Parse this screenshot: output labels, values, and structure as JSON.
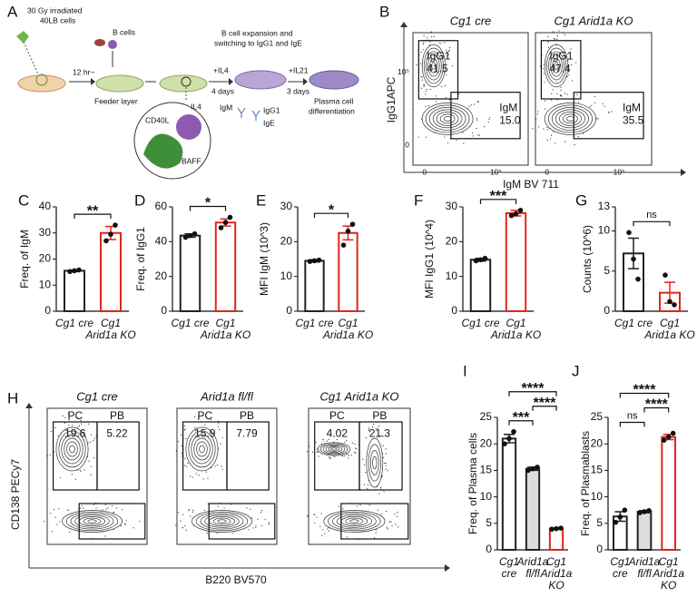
{
  "schematic": {
    "panel": "A",
    "irradiated": "30 Gy irradiated",
    "cells": "40LB cells",
    "bcells": "B cells",
    "time": "12 hr~",
    "feeder": "Feeder layer",
    "expansion1": "B cell expansion and",
    "expansion2": "switching to IgG1 and IgE",
    "il4": "+IL4",
    "days4": "4 days",
    "il21": "+IL21",
    "days3": "3 days",
    "pc1": "Plasma cell",
    "pc2": "differentiation",
    "cd40l": "CD40L",
    "il4b": "IL4",
    "baff": "BAFF",
    "igm": "IgM",
    "igg1": "IgG1",
    "ige": "IgE"
  },
  "flow_b": {
    "panel": "B",
    "x_label": "IgM BV 711",
    "y_label": "IgG1APC",
    "x_ticks": [
      "0",
      "10⁵"
    ],
    "y_ticks": [
      "0",
      "10⁵"
    ],
    "plots": [
      {
        "title": "Cg1 cre",
        "gates": [
          {
            "name": "IgG1",
            "value": "41.5"
          },
          {
            "name": "IgM",
            "value": "15.0"
          }
        ]
      },
      {
        "title": "Cg1 Arid1a KO",
        "gates": [
          {
            "name": "IgG1",
            "value": "47.4"
          },
          {
            "name": "IgM",
            "value": "35.5"
          }
        ]
      }
    ]
  },
  "flow_h": {
    "panel": "H",
    "x_label": "B220 BV570",
    "y_label": "CD138 PECy7",
    "plots": [
      {
        "title": "Cg1 cre",
        "gates": [
          {
            "name": "PC",
            "value": "19.6"
          },
          {
            "name": "PB",
            "value": "5.22"
          }
        ]
      },
      {
        "title": "Arid1a fl/fl",
        "gates": [
          {
            "name": "PC",
            "value": "15.9"
          },
          {
            "name": "PB",
            "value": "7.79"
          }
        ]
      },
      {
        "title": "Cg1 Arid1a KO",
        "gates": [
          {
            "name": "PC",
            "value": "4.02"
          },
          {
            "name": "PB",
            "value": "21.3"
          }
        ]
      }
    ]
  },
  "chart_data": [
    {
      "type": "bar",
      "panel": "C",
      "y_label": "Freq. of IgM",
      "categories": [
        "Cg1 cre",
        "Cg1\nArid1a KO"
      ],
      "values": [
        15.5,
        30
      ],
      "errors": [
        0.3,
        2.5
      ],
      "points": [
        [
          15.2,
          15.5,
          15.8
        ],
        [
          27,
          29.5,
          33
        ]
      ],
      "colors": [
        "#222222",
        "#e0241b"
      ],
      "fills": [
        "#ffffff",
        "#ffffff"
      ],
      "ylim": [
        0,
        40
      ],
      "yticks": [
        0,
        10,
        20,
        30,
        40
      ],
      "comparisons": [
        {
          "from": 0,
          "to": 1,
          "label": "**"
        }
      ]
    },
    {
      "type": "bar",
      "panel": "D",
      "y_label": "Freq. of IgG1",
      "categories": [
        "Cg1 cre",
        "Cg1\nArid1a KO"
      ],
      "values": [
        43.5,
        51
      ],
      "errors": [
        1,
        2
      ],
      "points": [
        [
          42.5,
          43.5,
          44.5
        ],
        [
          48,
          51,
          54
        ]
      ],
      "colors": [
        "#222222",
        "#e0241b"
      ],
      "fills": [
        "#ffffff",
        "#ffffff"
      ],
      "ylim": [
        0,
        60
      ],
      "yticks": [
        0,
        20,
        40,
        60
      ],
      "comparisons": [
        {
          "from": 0,
          "to": 1,
          "label": "*"
        }
      ]
    },
    {
      "type": "bar",
      "panel": "E",
      "y_label": "MFI IgM (10^3)",
      "categories": [
        "Cg1 cre",
        "Cg1\nArid1a KO"
      ],
      "values": [
        14.5,
        22.5
      ],
      "errors": [
        0.3,
        2
      ],
      "points": [
        [
          14.3,
          14.5,
          14.7
        ],
        [
          19,
          23,
          25
        ]
      ],
      "colors": [
        "#222222",
        "#e0241b"
      ],
      "fills": [
        "#ffffff",
        "#ffffff"
      ],
      "ylim": [
        0,
        30
      ],
      "yticks": [
        0,
        10,
        20,
        30
      ],
      "comparisons": [
        {
          "from": 0,
          "to": 1,
          "label": "*"
        }
      ]
    },
    {
      "type": "bar",
      "panel": "F",
      "y_label": "MFI IgG1 (10^4)",
      "categories": [
        "Cg1 cre",
        "Cg1\nArid1a KO"
      ],
      "values": [
        14.8,
        28.2
      ],
      "errors": [
        0.4,
        0.8
      ],
      "points": [
        [
          14.5,
          14.8,
          15.2
        ],
        [
          27.5,
          28,
          29
        ]
      ],
      "colors": [
        "#222222",
        "#e0241b"
      ],
      "fills": [
        "#ffffff",
        "#ffffff"
      ],
      "ylim": [
        0,
        30
      ],
      "yticks": [
        0,
        10,
        20,
        30
      ],
      "comparisons": [
        {
          "from": 0,
          "to": 1,
          "label": "***"
        }
      ]
    },
    {
      "type": "bar",
      "panel": "G",
      "y_label": "Counts (10^6)",
      "categories": [
        "Cg1 cre",
        "Cg1\nArid1a KO"
      ],
      "values": [
        7.2,
        2.3
      ],
      "errors": [
        1.9,
        1.3
      ],
      "points": [
        [
          9.8,
          6.5,
          4
        ],
        [
          4.5,
          1.2,
          0.8
        ]
      ],
      "colors": [
        "#222222",
        "#e0241b"
      ],
      "fills": [
        "#ffffff",
        "#ffffff"
      ],
      "ylim": [
        0,
        13
      ],
      "yticks": [
        0,
        5,
        10,
        13
      ],
      "comparisons": [
        {
          "from": 0,
          "to": 1,
          "label": "ns"
        }
      ]
    },
    {
      "type": "bar",
      "panel": "I",
      "y_label": "Freq. of  Plasma cells",
      "categories": [
        "Cg1\ncre",
        "Arid1a\nfl/fl",
        "Cg1\nArid1a\nKO"
      ],
      "values": [
        21,
        15.3,
        4
      ],
      "errors": [
        0.8,
        0.3,
        0.1
      ],
      "points": [
        [
          20,
          21,
          22.3
        ],
        [
          15,
          15.3,
          15.6
        ],
        [
          3.9,
          4,
          4.1
        ]
      ],
      "colors": [
        "#222222",
        "#222222",
        "#e0241b"
      ],
      "fills": [
        "#ffffff",
        "#dddddd",
        "#ffffff"
      ],
      "ylim": [
        0,
        25
      ],
      "yticks": [
        0,
        5,
        10,
        15,
        20,
        25
      ],
      "comparisons": [
        {
          "from": 0,
          "to": 1,
          "label": "***"
        },
        {
          "from": 1,
          "to": 2,
          "label": "****"
        },
        {
          "from": 0,
          "to": 2,
          "label": "****"
        }
      ]
    },
    {
      "type": "bar",
      "panel": "J",
      "y_label": "Freq. of Plasmablasts",
      "categories": [
        "Cg1\ncre",
        "Arid1a\nfl/fl",
        "Cg1\nArid1a\nKO"
      ],
      "values": [
        6.3,
        7.2,
        21.3
      ],
      "errors": [
        0.9,
        0.2,
        0.5
      ],
      "points": [
        [
          5.2,
          6.2,
          7.5
        ],
        [
          7,
          7.2,
          7.4
        ],
        [
          20.7,
          21.3,
          22
        ]
      ],
      "colors": [
        "#222222",
        "#222222",
        "#e0241b"
      ],
      "fills": [
        "#ffffff",
        "#dddddd",
        "#ffffff"
      ],
      "ylim": [
        0,
        25
      ],
      "yticks": [
        0,
        5,
        10,
        15,
        20,
        25
      ],
      "comparisons": [
        {
          "from": 0,
          "to": 1,
          "label": "ns"
        },
        {
          "from": 1,
          "to": 2,
          "label": "****"
        },
        {
          "from": 0,
          "to": 2,
          "label": "****"
        }
      ]
    }
  ]
}
